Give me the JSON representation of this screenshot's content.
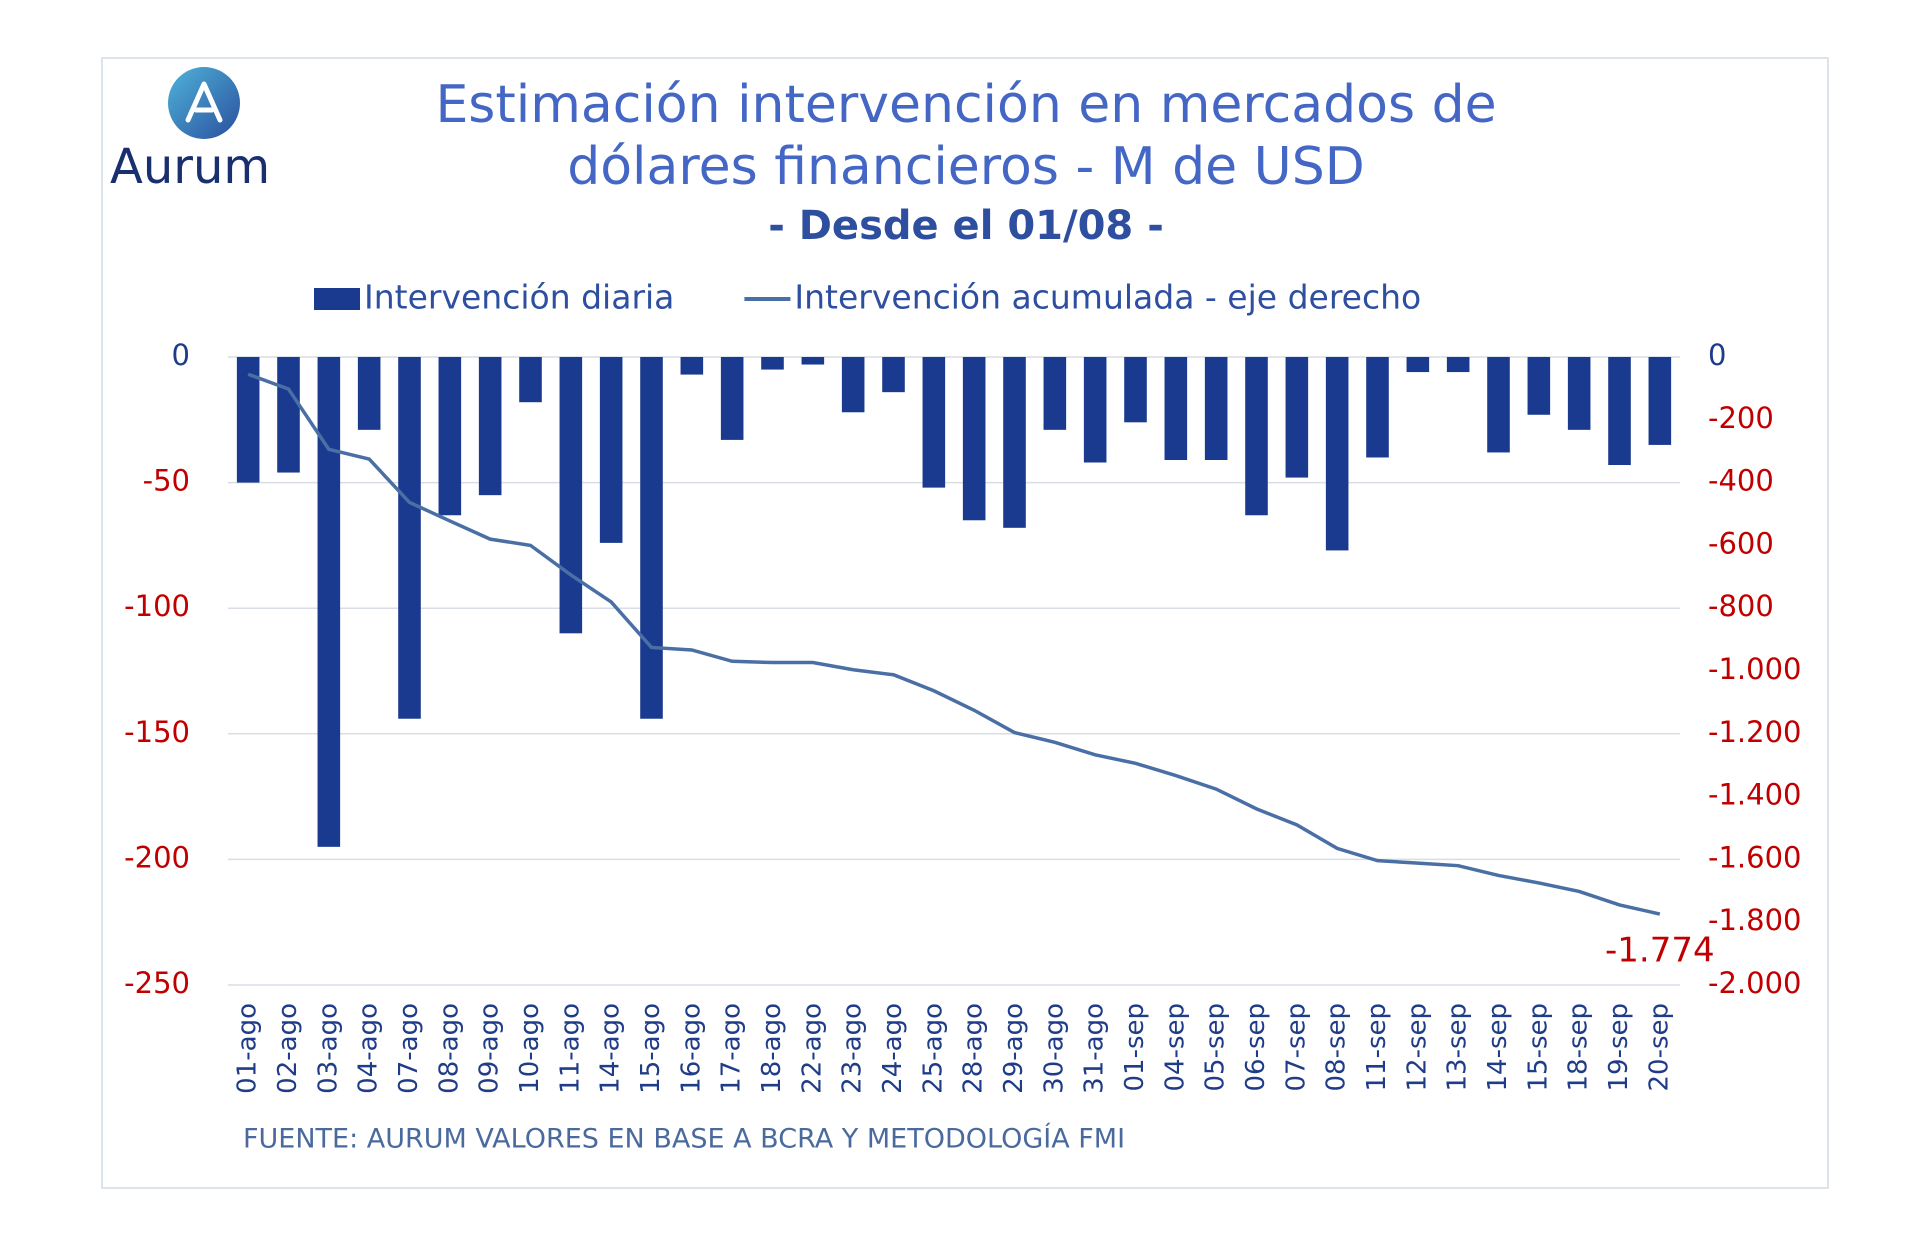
{
  "chart_data": {
    "type": "combo",
    "logo": "Aurum",
    "title": [
      "Estimación intervención en mercados de",
      "dólares financieros - M de USD"
    ],
    "subtitle": "- Desde el 01/08 -",
    "source": "FUENTE: AURUM VALORES EN BASE A BCRA Y METODOLOGÍA FMI",
    "categories": [
      "01-ago",
      "02-ago",
      "03-ago",
      "04-ago",
      "07-ago",
      "08-ago",
      "09-ago",
      "10-ago",
      "11-ago",
      "14-ago",
      "15-ago",
      "16-ago",
      "17-ago",
      "18-ago",
      "22-ago",
      "23-ago",
      "24-ago",
      "25-ago",
      "28-ago",
      "29-ago",
      "30-ago",
      "31-ago",
      "01-sep",
      "04-sep",
      "05-sep",
      "06-sep",
      "07-sep",
      "08-sep",
      "11-sep",
      "12-sep",
      "13-sep",
      "14-sep",
      "15-sep",
      "18-sep",
      "19-sep",
      "20-sep"
    ],
    "series": [
      {
        "name": "Intervención diaria",
        "type": "bar",
        "color": "#1a3a8f",
        "values": [
          -50,
          -46,
          -195,
          -29,
          -144,
          -63,
          -55,
          -18,
          -110,
          -74,
          -144,
          -7,
          -33,
          -5,
          -3,
          -22,
          -14,
          -52,
          -65,
          -68,
          -29,
          -42,
          -26,
          -41,
          -41,
          -63,
          -48,
          -77,
          -40,
          -6,
          -6,
          -38,
          -23,
          -29,
          -43,
          -35
        ]
      },
      {
        "name": "Intervención acumulada - eje derecho",
        "type": "line",
        "axis": "y2",
        "color": "#4a6fa5",
        "values": [
          -55,
          -102,
          -294,
          -325,
          -463,
          -522,
          -580,
          -600,
          -694,
          -780,
          -925,
          -933,
          -969,
          -973,
          -973,
          -996,
          -1012,
          -1063,
          -1125,
          -1196,
          -1227,
          -1267,
          -1294,
          -1333,
          -1376,
          -1439,
          -1490,
          -1565,
          -1604,
          -1612,
          -1620,
          -1651,
          -1675,
          -1702,
          -1745,
          -1774
        ],
        "value_labels": [
          null,
          null,
          null,
          null,
          null,
          null,
          null,
          null,
          null,
          null,
          null,
          null,
          null,
          null,
          null,
          null,
          null,
          null,
          null,
          null,
          null,
          null,
          null,
          null,
          null,
          null,
          null,
          null,
          null,
          null,
          null,
          null,
          null,
          null,
          null,
          "-1.774"
        ]
      }
    ],
    "ylim": [
      -250,
      0
    ],
    "yticks": [
      0,
      -50,
      -100,
      -150,
      -200,
      -250
    ],
    "y2lim": [
      -2000,
      0
    ],
    "y2ticks": [
      0,
      -200,
      -400,
      -600,
      -800,
      {
        "value": -1000,
        "label": "-1.000"
      },
      {
        "value": -1200,
        "label": "-1.200"
      },
      {
        "value": -1400,
        "label": "-1.400"
      },
      {
        "value": -1600,
        "label": "-1.600"
      },
      {
        "value": -1800,
        "label": "-1.800"
      },
      {
        "value": -2000,
        "label": "-2.000"
      }
    ],
    "grid": true,
    "tick_color": "#1f3c88",
    "negative_tick_color": "#c00000",
    "legend": "top"
  }
}
